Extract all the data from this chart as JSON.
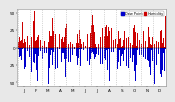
{
  "ylim": [
    -55,
    55
  ],
  "num_days": 365,
  "background_color": "#e8e8e8",
  "plot_bg_color": "#ffffff",
  "bar_width": 0.7,
  "legend_blue_label": "Dew Point",
  "legend_red_label": "Humidity",
  "blue_color": "#0000cc",
  "red_color": "#cc0000",
  "grid_color": "#b0b0b0",
  "axis_fontsize": 3.0,
  "legend_fontsize": 2.5,
  "yticks": [
    -50,
    -25,
    0,
    25,
    50
  ],
  "ytick_labels": [
    "50",
    "25",
    "0",
    "25",
    "50"
  ],
  "month_starts": [
    0,
    31,
    59,
    90,
    120,
    151,
    181,
    212,
    243,
    273,
    304,
    334
  ],
  "month_mids": [
    15,
    45,
    74,
    105,
    135,
    166,
    196,
    227,
    258,
    288,
    319,
    349
  ],
  "month_labels": [
    "J",
    "F",
    "M",
    "A",
    "M",
    "J",
    "J",
    "A",
    "S",
    "O",
    "N",
    "D"
  ]
}
